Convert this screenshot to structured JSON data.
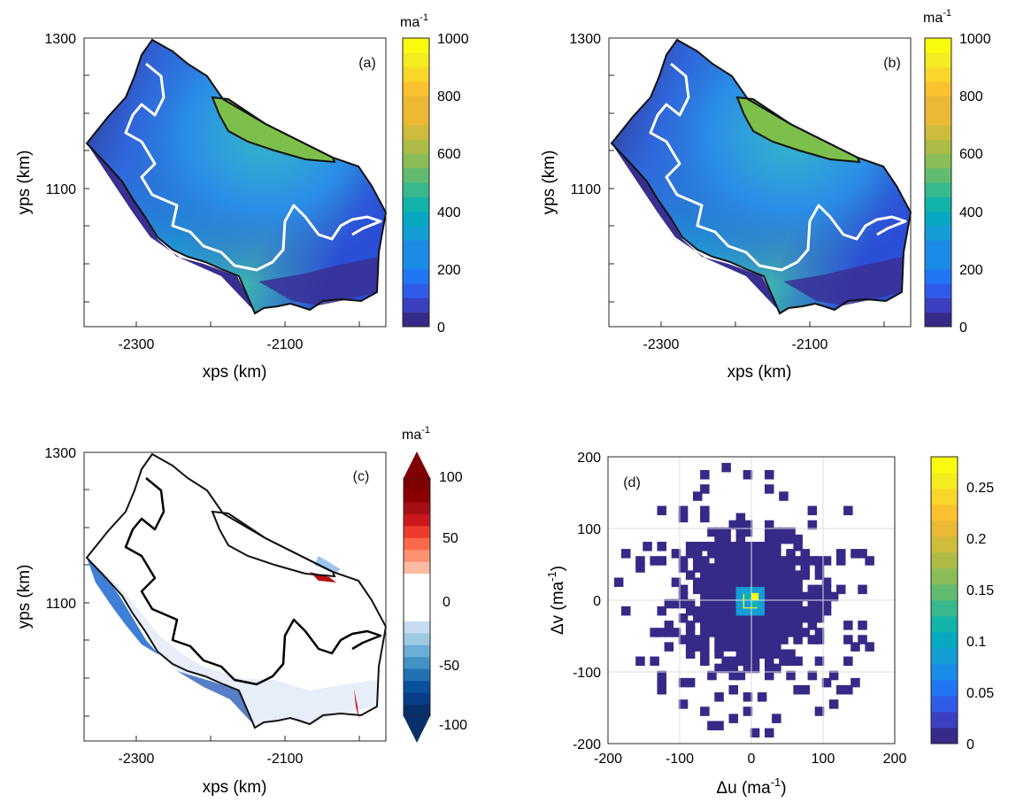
{
  "figure": {
    "panels": [
      {
        "id": "a",
        "panel_label": "(a)",
        "xlabel": "xps (km)",
        "ylabel": "yps (km)",
        "x_ticks": [
          "-2300",
          "-2100"
        ],
        "y_ticks": [
          "1100",
          "1300"
        ],
        "colorbar_title_base": "ma",
        "colorbar_title_exp": "-1",
        "colorbar_ticks": [
          "0",
          "200",
          "400",
          "600",
          "800",
          "1000"
        ]
      },
      {
        "id": "b",
        "panel_label": "(b)",
        "xlabel": "xps (km)",
        "ylabel": "yps (km)",
        "x_ticks": [
          "-2300",
          "-2100"
        ],
        "y_ticks": [
          "1100",
          "1300"
        ],
        "colorbar_title_base": "ma",
        "colorbar_title_exp": "-1",
        "colorbar_ticks": [
          "0",
          "200",
          "400",
          "600",
          "800",
          "1000"
        ]
      },
      {
        "id": "c",
        "panel_label": "(c)",
        "xlabel": "xps (km)",
        "ylabel": "yps (km)",
        "x_ticks": [
          "-2300",
          "-2100"
        ],
        "y_ticks": [
          "1100",
          "1300"
        ],
        "colorbar_title_base": "ma",
        "colorbar_title_exp": "-1",
        "colorbar_ticks": [
          "-100",
          "-50",
          "0",
          "50",
          "100"
        ]
      },
      {
        "id": "d",
        "panel_label": "(d)",
        "xlabel_base": "Δu (ma",
        "xlabel_exp": "-1",
        "xlabel_close": ")",
        "ylabel_base": "Δv (ma",
        "ylabel_exp": "-1",
        "ylabel_close": ")",
        "x_ticks": [
          "-200",
          "-100",
          "0",
          "100",
          "200"
        ],
        "y_ticks": [
          "-200",
          "-100",
          "0",
          "100",
          "200"
        ],
        "colorbar_ticks": [
          "0",
          "0.05",
          "0.1",
          "0.15",
          "0.2",
          "0.25"
        ]
      }
    ],
    "colors": {
      "parula_low": "#352a87",
      "parula_high": "#f9fb0e",
      "diverging_low": "#08306b",
      "diverging_high": "#7f0000",
      "grounding_line_ab": "#ffffff",
      "grounding_line_c": "#000000"
    }
  },
  "chart_data": [
    {
      "type": "heatmap",
      "panel": "a",
      "xlabel": "xps (km)",
      "ylabel": "yps (km)",
      "xlim": [
        -2380,
        -2040
      ],
      "ylim": [
        980,
        1300
      ],
      "colorbar": {
        "title": "ma^-1",
        "range": [
          0,
          1000
        ],
        "ticks": [
          0,
          200,
          400,
          600,
          800,
          1000
        ],
        "colormap": "parula"
      },
      "features": [
        "white grounding line contour",
        "black ice-shelf outline",
        "fast-flow region ~600–700 ma^-1 in north-east"
      ]
    },
    {
      "type": "heatmap",
      "panel": "b",
      "xlabel": "xps (km)",
      "ylabel": "yps (km)",
      "xlim": [
        -2380,
        -2040
      ],
      "ylim": [
        980,
        1300
      ],
      "colorbar": {
        "title": "ma^-1",
        "range": [
          0,
          1000
        ],
        "ticks": [
          0,
          200,
          400,
          600,
          800,
          1000
        ],
        "colormap": "parula"
      }
    },
    {
      "type": "heatmap",
      "panel": "c",
      "xlabel": "xps (km)",
      "ylabel": "yps (km)",
      "xlim": [
        -2380,
        -2040
      ],
      "ylim": [
        980,
        1300
      ],
      "colorbar": {
        "title": "ma^-1",
        "range": [
          -100,
          100
        ],
        "ticks": [
          -100,
          -50,
          0,
          50,
          100
        ],
        "colormap": "blue-white-red",
        "extend": "both"
      }
    },
    {
      "type": "heatmap",
      "panel": "d",
      "xlabel": "Δu (ma^-1)",
      "ylabel": "Δv (ma^-1)",
      "xlim": [
        -200,
        200
      ],
      "ylim": [
        -200,
        200
      ],
      "grid": true,
      "bin_width": 10,
      "colorbar": {
        "range": [
          0,
          0.28
        ],
        "ticks": [
          0,
          0.05,
          0.1,
          0.15,
          0.2,
          0.25
        ],
        "colormap": "parula"
      },
      "peak": {
        "x": 0,
        "y": 0,
        "value": 0.28
      }
    }
  ]
}
